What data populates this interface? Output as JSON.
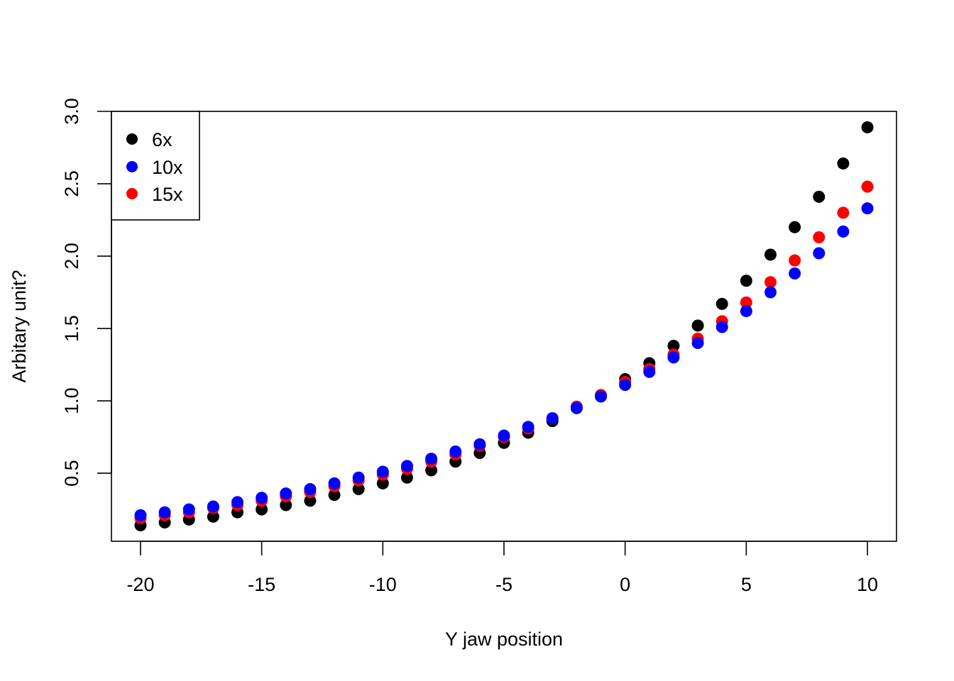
{
  "chart_data": {
    "type": "scatter",
    "title": "",
    "xlabel": "Y jaw position",
    "ylabel": "Arbitary unit?",
    "xlim": [
      -21.2,
      11.2
    ],
    "ylim": [
      0.03,
      3.0
    ],
    "x_ticks": [
      -20,
      -15,
      -10,
      -5,
      0,
      5,
      10
    ],
    "x_tick_labels": [
      "-20",
      "-15",
      "-10",
      "-5",
      "0",
      "5",
      "10"
    ],
    "y_ticks": [
      0.5,
      1.0,
      1.5,
      2.0,
      2.5,
      3.0
    ],
    "y_tick_labels": [
      "0.5",
      "1.0",
      "1.5",
      "2.0",
      "2.5",
      "3.0"
    ],
    "grid": false,
    "legend_position": "top-left",
    "x": [
      -20,
      -19,
      -18,
      -17,
      -16,
      -15,
      -14,
      -13,
      -12,
      -11,
      -10,
      -9,
      -8,
      -7,
      -6,
      -5,
      -4,
      -3,
      -2,
      -1,
      0,
      1,
      2,
      3,
      4,
      5,
      6,
      7,
      8,
      9,
      10
    ],
    "series": [
      {
        "name": "6x",
        "color": "#000000",
        "values": [
          0.14,
          0.16,
          0.18,
          0.2,
          0.23,
          0.25,
          0.28,
          0.31,
          0.35,
          0.39,
          0.43,
          0.47,
          0.52,
          0.58,
          0.64,
          0.71,
          0.78,
          0.86,
          0.95,
          1.04,
          1.15,
          1.26,
          1.38,
          1.52,
          1.67,
          1.83,
          2.01,
          2.2,
          2.41,
          2.64,
          2.89
        ]
      },
      {
        "name": "10x",
        "color": "#0000FF",
        "values": [
          0.21,
          0.23,
          0.25,
          0.27,
          0.3,
          0.33,
          0.36,
          0.39,
          0.43,
          0.47,
          0.51,
          0.55,
          0.6,
          0.65,
          0.7,
          0.76,
          0.82,
          0.88,
          0.95,
          1.03,
          1.11,
          1.2,
          1.3,
          1.4,
          1.51,
          1.62,
          1.75,
          1.88,
          2.02,
          2.17,
          2.33
        ]
      },
      {
        "name": "15x",
        "color": "#FF0000",
        "values": [
          0.19,
          0.21,
          0.23,
          0.26,
          0.28,
          0.31,
          0.34,
          0.37,
          0.41,
          0.45,
          0.49,
          0.53,
          0.58,
          0.63,
          0.69,
          0.75,
          0.81,
          0.88,
          0.96,
          1.04,
          1.13,
          1.22,
          1.32,
          1.43,
          1.55,
          1.68,
          1.82,
          1.97,
          2.13,
          2.3,
          2.48
        ]
      }
    ],
    "draw_order": [
      "6x",
      "15x",
      "10x"
    ]
  }
}
